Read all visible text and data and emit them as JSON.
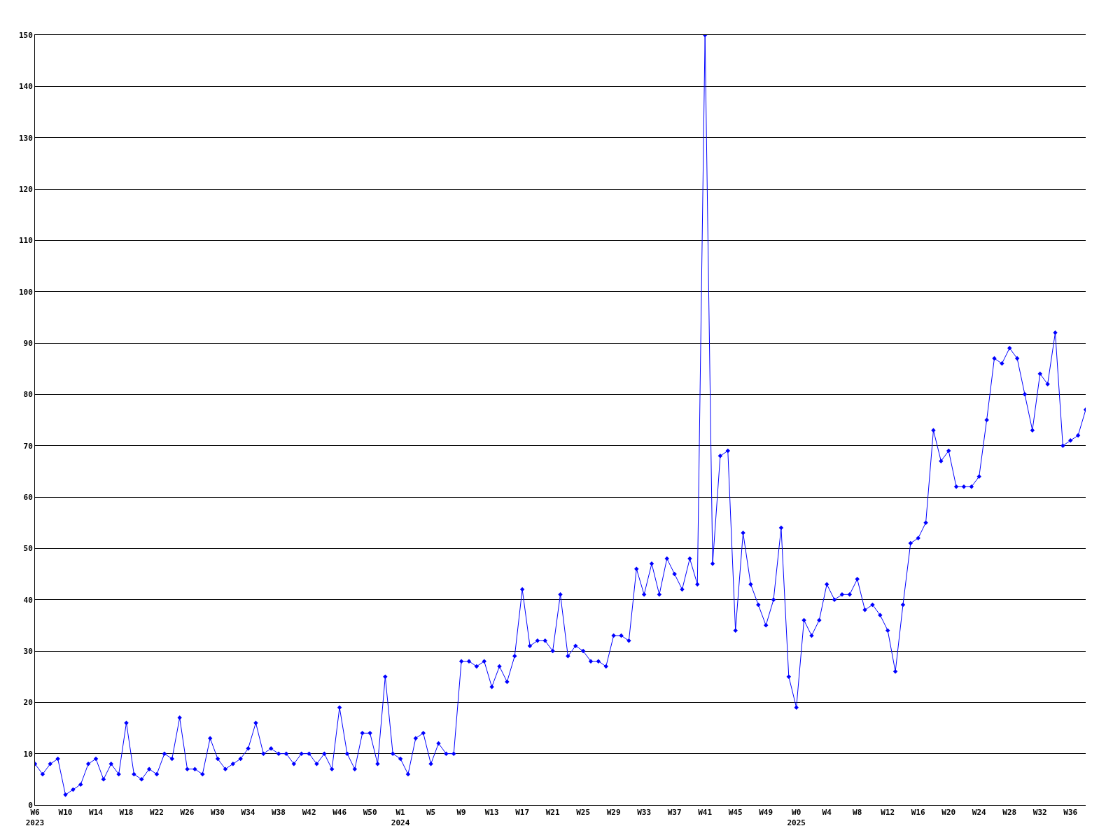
{
  "chart_data": {
    "type": "line",
    "categories": [
      "W6\n2023",
      null,
      null,
      null,
      "W10",
      null,
      null,
      null,
      "W14",
      null,
      null,
      null,
      "W18",
      null,
      null,
      null,
      "W22",
      null,
      null,
      null,
      "W26",
      null,
      null,
      null,
      "W30",
      null,
      null,
      null,
      "W34",
      null,
      null,
      null,
      "W38",
      null,
      null,
      null,
      "W42",
      null,
      null,
      null,
      "W46",
      null,
      null,
      null,
      "W50",
      null,
      null,
      null,
      "W1\n2024",
      null,
      null,
      null,
      "W5",
      null,
      null,
      null,
      "W9",
      null,
      null,
      null,
      "W13",
      null,
      null,
      null,
      "W17",
      null,
      null,
      null,
      "W21",
      null,
      null,
      null,
      "W25",
      null,
      null,
      null,
      "W29",
      null,
      null,
      null,
      "W33",
      null,
      null,
      null,
      "W37",
      null,
      null,
      null,
      "W41",
      null,
      null,
      null,
      "W45",
      null,
      null,
      null,
      "W49",
      null,
      null,
      null,
      "W0\n2025",
      null,
      null,
      null,
      "W4",
      null,
      null,
      null,
      "W8",
      null,
      null,
      null,
      "W12",
      null,
      null,
      null,
      "W16",
      null,
      null,
      null,
      "W20",
      null,
      null,
      null,
      "W24",
      null,
      null,
      null,
      "W28",
      null,
      null,
      null,
      "W32",
      null,
      null,
      null,
      "W36",
      null,
      null
    ],
    "series": [
      {
        "color": "#0000ff",
        "values": [
          8,
          6,
          8,
          9,
          2,
          3,
          4,
          8,
          9,
          5,
          8,
          6,
          16,
          6,
          5,
          7,
          6,
          10,
          9,
          17,
          7,
          7,
          6,
          13,
          9,
          7,
          8,
          9,
          11,
          16,
          10,
          11,
          10,
          10,
          8,
          10,
          10,
          8,
          10,
          7,
          19,
          10,
          7,
          14,
          14,
          8,
          25,
          10,
          9,
          6,
          13,
          14,
          8,
          12,
          10,
          10,
          28,
          28,
          27,
          28,
          23,
          27,
          24,
          29,
          42,
          31,
          32,
          32,
          30,
          41,
          29,
          31,
          30,
          28,
          28,
          27,
          33,
          33,
          32,
          46,
          41,
          47,
          41,
          48,
          45,
          42,
          48,
          43,
          150,
          47,
          68,
          69,
          34,
          53,
          43,
          39,
          35,
          40,
          54,
          25,
          19,
          36,
          33,
          36,
          43,
          40,
          41,
          41,
          44,
          38,
          39,
          37,
          34,
          26,
          39,
          51,
          52,
          55,
          73,
          67,
          69,
          62,
          62,
          62,
          64,
          75,
          87,
          86,
          89,
          87,
          80,
          73,
          84,
          82,
          92,
          70,
          71,
          72,
          77
        ]
      }
    ],
    "ylim": [
      0,
      150
    ],
    "yticks": [
      0,
      10,
      20,
      30,
      40,
      50,
      60,
      70,
      80,
      90,
      100,
      110,
      120,
      130,
      140,
      150
    ],
    "grid": "y",
    "marker": "diamond",
    "line_style": "solid"
  }
}
